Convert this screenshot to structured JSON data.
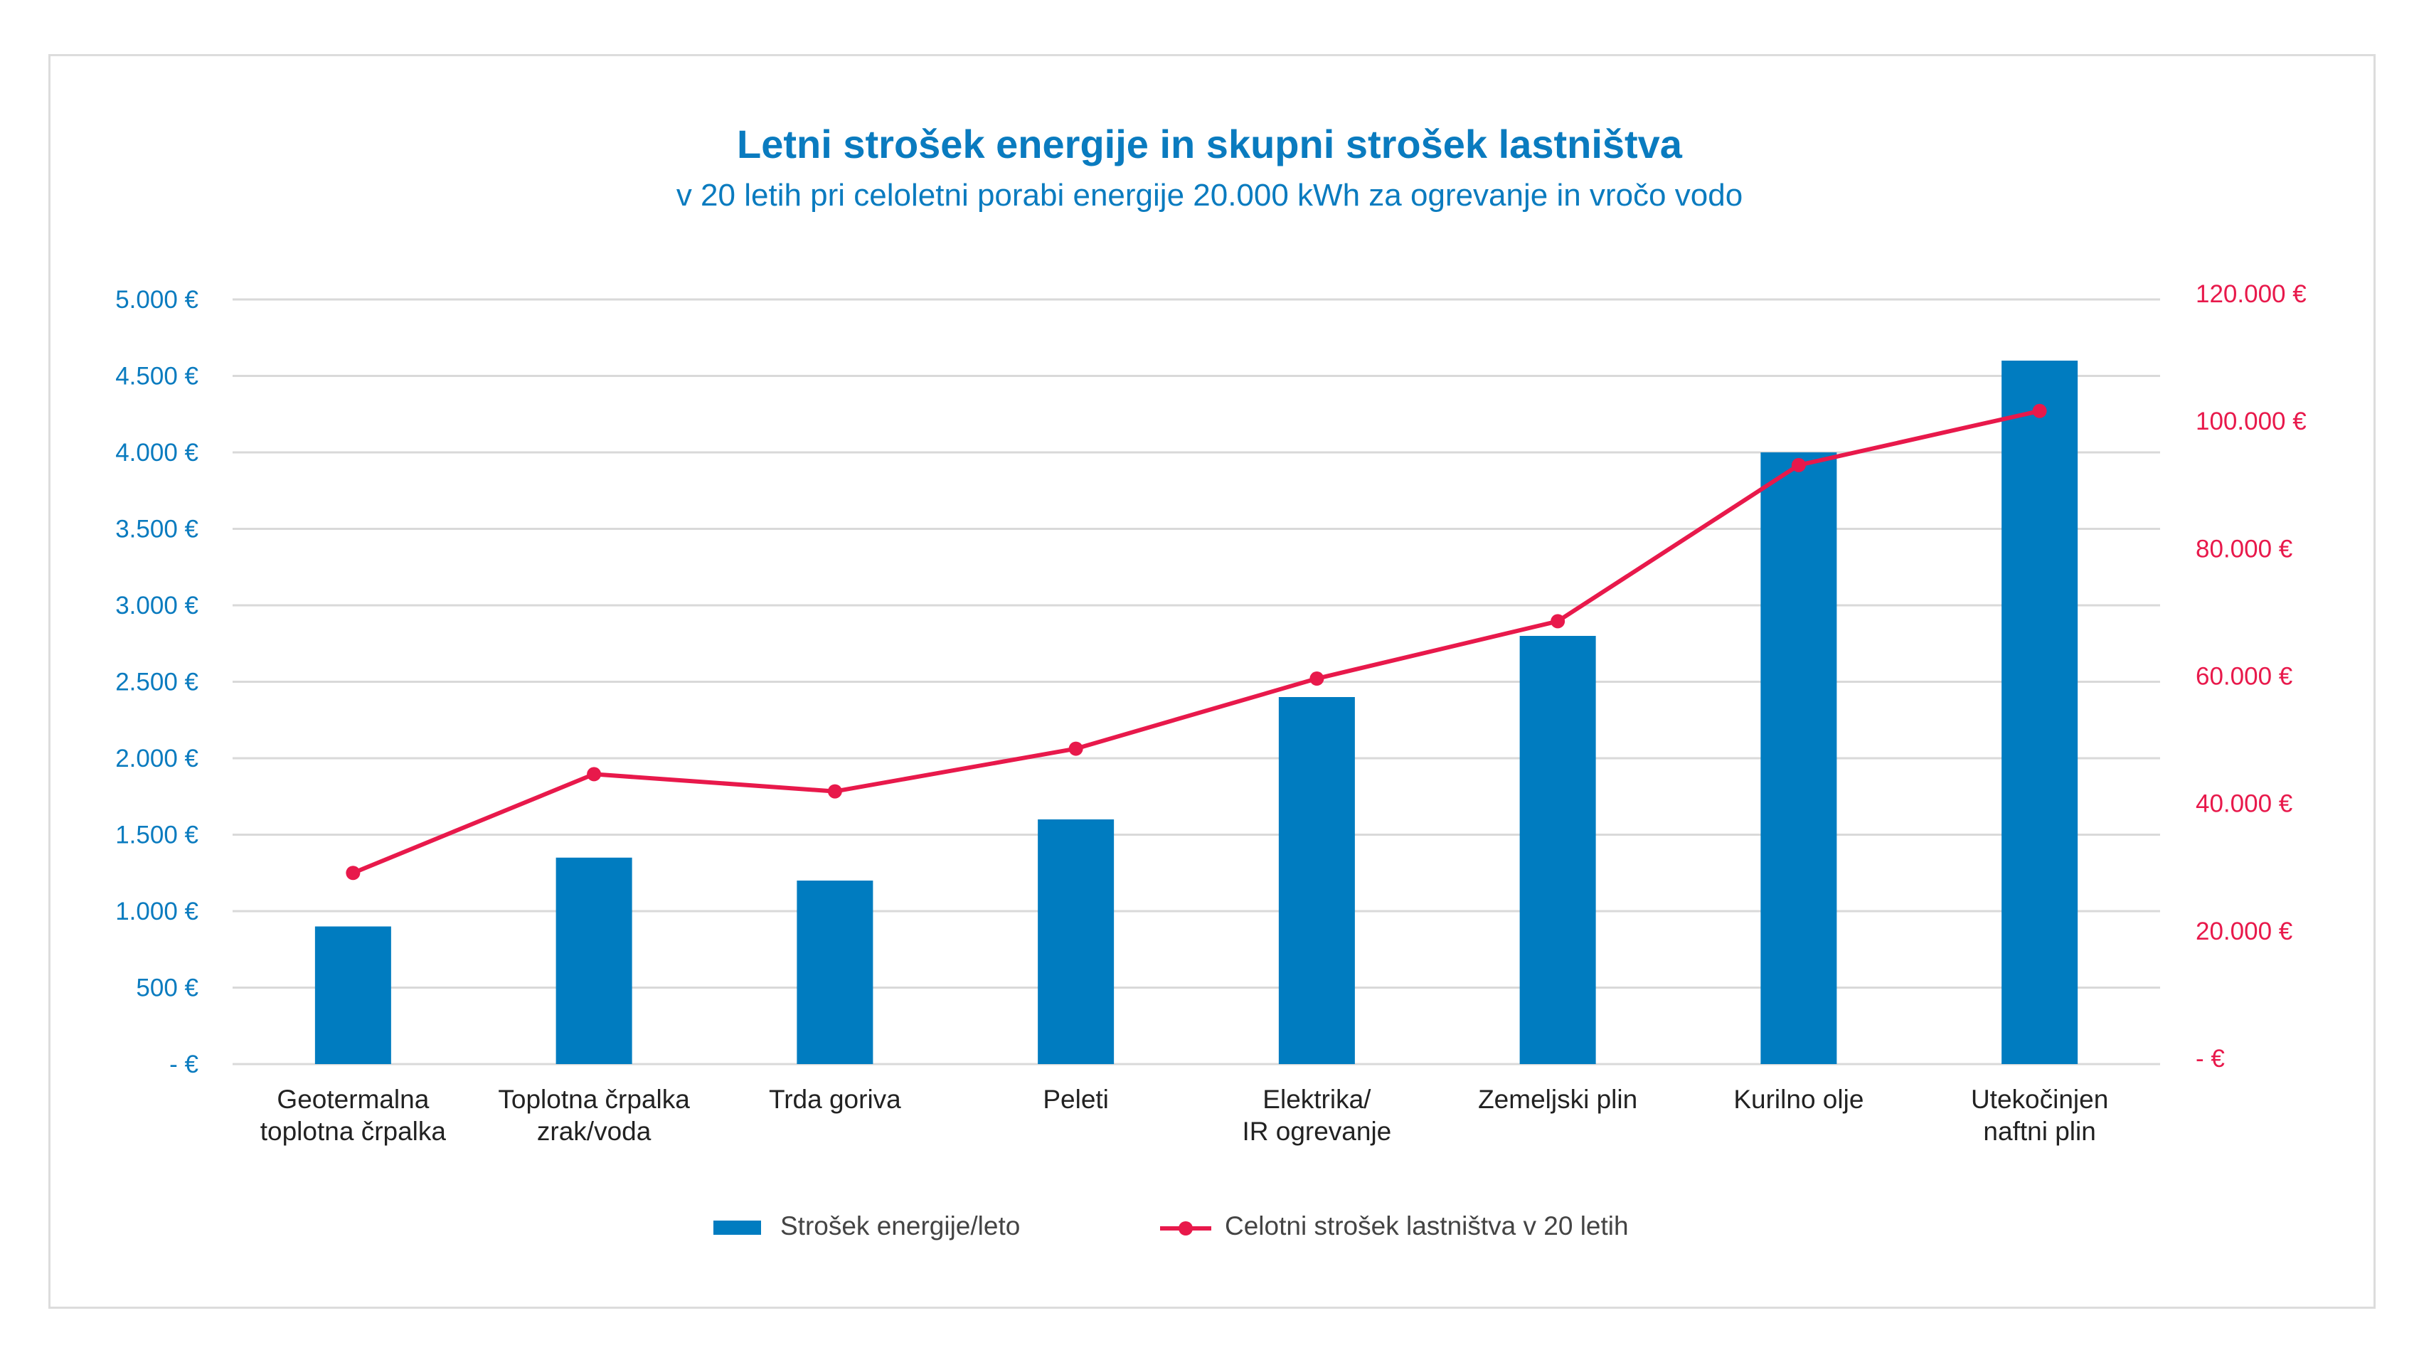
{
  "chart_data": {
    "type": "bar+line",
    "title": "Letni strošek energije in skupni strošek lastništva",
    "subtitle": "v 20 letih pri celoletni porabi energije 20.000 kWh za ogrevanje in vročo vodo",
    "categories": [
      [
        "Geotermalna",
        "toplotna črpalka"
      ],
      [
        "Toplotna črpalka",
        "zrak/voda"
      ],
      [
        "Trda goriva"
      ],
      [
        "Peleti"
      ],
      [
        "Elektrika/",
        "IR ogrevanje"
      ],
      [
        "Zemeljski plin"
      ],
      [
        "Kurilno olje"
      ],
      [
        "Utekočinjen",
        "naftni plin"
      ]
    ],
    "series": [
      {
        "name": "Strošek energije/leto",
        "type": "bar",
        "axis": "left",
        "color": "#007cc0",
        "values": [
          900,
          1350,
          1200,
          1600,
          2400,
          2800,
          4000,
          4600
        ]
      },
      {
        "name": "Celotni strošek lastništva v 20 letih",
        "type": "line",
        "axis": "right",
        "color": "#e8194b",
        "values": [
          30000,
          45500,
          42800,
          49500,
          60500,
          69500,
          94000,
          102500
        ]
      }
    ],
    "y_left": {
      "ylim": [
        0,
        5000
      ],
      "ticks": [
        0,
        500,
        1000,
        1500,
        2000,
        2500,
        3000,
        3500,
        4000,
        4500,
        5000
      ],
      "tick_labels": [
        "- €",
        "500 €",
        "1.000 €",
        "1.500 €",
        "2.000 €",
        "2.500 €",
        "3.000 €",
        "3.500 €",
        "4.000 €",
        "4.500 €",
        "5.000 €"
      ],
      "color": "#0a7bbf"
    },
    "y_right": {
      "ylim": [
        0,
        120000
      ],
      "ticks": [
        0,
        20000,
        40000,
        60000,
        80000,
        100000,
        120000
      ],
      "tick_labels": [
        "- €",
        "20.000 €",
        "40.000 €",
        "60.000 €",
        "80.000 €",
        "100.000 €",
        "120.000 €"
      ],
      "color": "#e8194b"
    },
    "grid": true,
    "legend": "bottom"
  }
}
